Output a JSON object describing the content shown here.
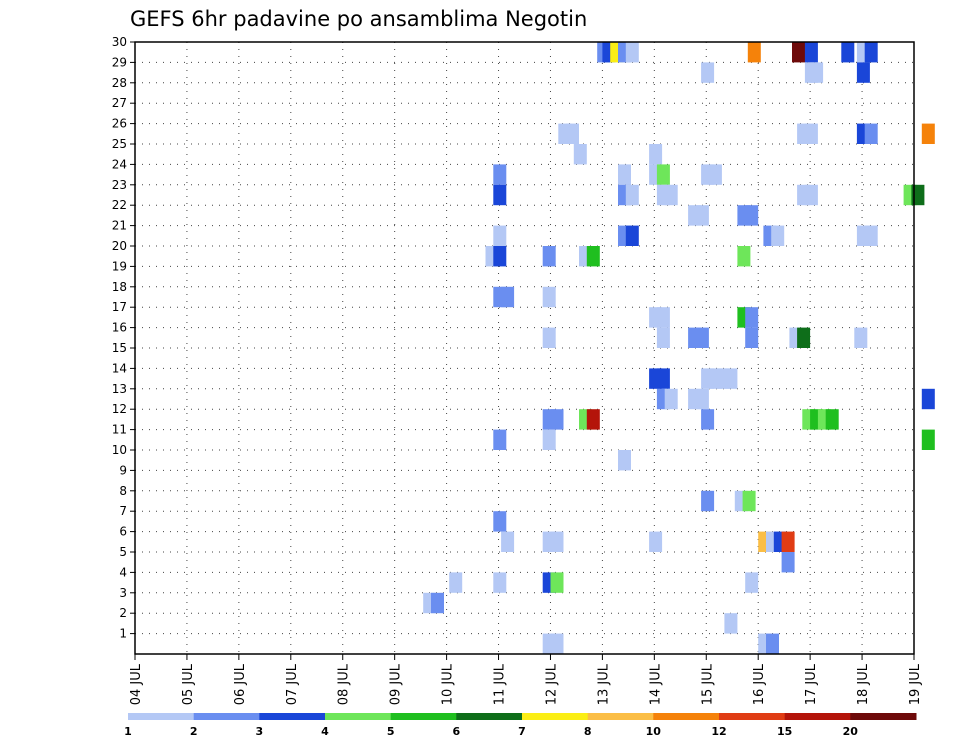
{
  "chart_data": {
    "type": "heatmap",
    "title": "GEFS 6hr padavine po ansamblima Negotin",
    "xlabel": "",
    "ylabel": "",
    "x_ticks": [
      "04 JUL",
      "05 JUL",
      "06 JUL",
      "07 JUL",
      "08 JUL",
      "09 JUL",
      "10 JUL",
      "11 JUL",
      "12 JUL",
      "13 JUL",
      "14 JUL",
      "15 JUL",
      "16 JUL",
      "17 JUL",
      "18 JUL",
      "19 JUL"
    ],
    "x_range_days": [
      4,
      19
    ],
    "y_ticks": [
      "1",
      "2",
      "3",
      "4",
      "5",
      "6",
      "7",
      "8",
      "9",
      "10",
      "11",
      "12",
      "13",
      "14",
      "15",
      "16",
      "17",
      "18",
      "19",
      "20",
      "21",
      "22",
      "23",
      "24",
      "25",
      "26",
      "27",
      "28",
      "29",
      "30"
    ],
    "y_range": [
      0,
      30
    ],
    "grid": "dotted",
    "colorbar": {
      "labels": [
        "1",
        "2",
        "3",
        "4",
        "5",
        "6",
        "7",
        "8",
        "10",
        "12",
        "15",
        "20"
      ],
      "colors": [
        "#b4c8f5",
        "#6a8ef0",
        "#1a46d8",
        "#6ee65a",
        "#1fbf1f",
        "#0e6e1a",
        "#fbee14",
        "#fbbe46",
        "#f5820a",
        "#e03c14",
        "#b4140a",
        "#6e0a0a"
      ]
    },
    "cells": [
      {
        "day": 12.9,
        "member": 30,
        "level": 2
      },
      {
        "day": 13.0,
        "member": 30,
        "level": 3
      },
      {
        "day": 13.15,
        "member": 30,
        "level": 7
      },
      {
        "day": 13.3,
        "member": 30,
        "level": 2
      },
      {
        "day": 13.45,
        "member": 30,
        "level": 1
      },
      {
        "day": 15.8,
        "member": 30,
        "level": 9
      },
      {
        "day": 16.65,
        "member": 30,
        "level": 12
      },
      {
        "day": 16.9,
        "member": 30,
        "level": 3
      },
      {
        "day": 17.6,
        "member": 30,
        "level": 3
      },
      {
        "day": 17.9,
        "member": 30,
        "level": 1
      },
      {
        "day": 18.05,
        "member": 30,
        "level": 3
      },
      {
        "day": 14.9,
        "member": 29,
        "level": 1
      },
      {
        "day": 16.9,
        "member": 29,
        "level": 1
      },
      {
        "day": 17.0,
        "member": 29,
        "level": 1
      },
      {
        "day": 17.9,
        "member": 29,
        "level": 3
      },
      {
        "day": 12.15,
        "member": 26,
        "level": 1
      },
      {
        "day": 12.3,
        "member": 26,
        "level": 1
      },
      {
        "day": 16.75,
        "member": 26,
        "level": 1
      },
      {
        "day": 16.9,
        "member": 26,
        "level": 1
      },
      {
        "day": 17.9,
        "member": 26,
        "level": 3
      },
      {
        "day": 18.05,
        "member": 26,
        "level": 2
      },
      {
        "day": 19.15,
        "member": 26,
        "level": 9
      },
      {
        "day": 12.45,
        "member": 25,
        "level": 1
      },
      {
        "day": 13.9,
        "member": 25,
        "level": 1
      },
      {
        "day": 10.9,
        "member": 24,
        "level": 2
      },
      {
        "day": 13.3,
        "member": 24,
        "level": 1
      },
      {
        "day": 13.9,
        "member": 24,
        "level": 1
      },
      {
        "day": 14.05,
        "member": 24,
        "level": 4
      },
      {
        "day": 14.9,
        "member": 24,
        "level": 1
      },
      {
        "day": 15.05,
        "member": 24,
        "level": 1
      },
      {
        "day": 10.9,
        "member": 23,
        "level": 3
      },
      {
        "day": 13.3,
        "member": 23,
        "level": 2
      },
      {
        "day": 13.45,
        "member": 23,
        "level": 1
      },
      {
        "day": 14.05,
        "member": 23,
        "level": 1
      },
      {
        "day": 14.2,
        "member": 23,
        "level": 1
      },
      {
        "day": 16.75,
        "member": 23,
        "level": 1
      },
      {
        "day": 16.9,
        "member": 23,
        "level": 1
      },
      {
        "day": 18.8,
        "member": 23,
        "level": 4
      },
      {
        "day": 18.95,
        "member": 23,
        "level": 6
      },
      {
        "day": 14.65,
        "member": 22,
        "level": 1
      },
      {
        "day": 14.8,
        "member": 22,
        "level": 1
      },
      {
        "day": 15.6,
        "member": 22,
        "level": 2
      },
      {
        "day": 15.75,
        "member": 22,
        "level": 2
      },
      {
        "day": 10.9,
        "member": 21,
        "level": 1
      },
      {
        "day": 13.3,
        "member": 21,
        "level": 2
      },
      {
        "day": 13.45,
        "member": 21,
        "level": 3
      },
      {
        "day": 16.1,
        "member": 21,
        "level": 2
      },
      {
        "day": 16.25,
        "member": 21,
        "level": 1
      },
      {
        "day": 17.9,
        "member": 21,
        "level": 1
      },
      {
        "day": 18.05,
        "member": 21,
        "level": 1
      },
      {
        "day": 10.75,
        "member": 20,
        "level": 1
      },
      {
        "day": 10.9,
        "member": 20,
        "level": 3
      },
      {
        "day": 11.85,
        "member": 20,
        "level": 2
      },
      {
        "day": 12.55,
        "member": 20,
        "level": 1
      },
      {
        "day": 12.7,
        "member": 20,
        "level": 5
      },
      {
        "day": 15.6,
        "member": 20,
        "level": 4
      },
      {
        "day": 10.9,
        "member": 18,
        "level": 2
      },
      {
        "day": 11.05,
        "member": 18,
        "level": 2
      },
      {
        "day": 11.85,
        "member": 18,
        "level": 1
      },
      {
        "day": 13.9,
        "member": 17,
        "level": 1
      },
      {
        "day": 14.05,
        "member": 17,
        "level": 1
      },
      {
        "day": 15.6,
        "member": 17,
        "level": 5
      },
      {
        "day": 15.75,
        "member": 17,
        "level": 2
      },
      {
        "day": 11.85,
        "member": 16,
        "level": 1
      },
      {
        "day": 14.05,
        "member": 16,
        "level": 1
      },
      {
        "day": 14.65,
        "member": 16,
        "level": 2
      },
      {
        "day": 14.8,
        "member": 16,
        "level": 2
      },
      {
        "day": 15.75,
        "member": 16,
        "level": 2
      },
      {
        "day": 16.6,
        "member": 16,
        "level": 1
      },
      {
        "day": 16.75,
        "member": 16,
        "level": 6
      },
      {
        "day": 17.85,
        "member": 16,
        "level": 1
      },
      {
        "day": 13.9,
        "member": 14,
        "level": 3
      },
      {
        "day": 14.05,
        "member": 14,
        "level": 3
      },
      {
        "day": 14.9,
        "member": 14,
        "level": 1
      },
      {
        "day": 15.05,
        "member": 14,
        "level": 1
      },
      {
        "day": 15.2,
        "member": 14,
        "level": 1
      },
      {
        "day": 15.35,
        "member": 14,
        "level": 1
      },
      {
        "day": 14.05,
        "member": 13,
        "level": 2
      },
      {
        "day": 14.2,
        "member": 13,
        "level": 1
      },
      {
        "day": 14.65,
        "member": 13,
        "level": 1
      },
      {
        "day": 14.8,
        "member": 13,
        "level": 1
      },
      {
        "day": 19.15,
        "member": 13,
        "level": 3
      },
      {
        "day": 11.85,
        "member": 12,
        "level": 2
      },
      {
        "day": 12.0,
        "member": 12,
        "level": 2
      },
      {
        "day": 12.55,
        "member": 12,
        "level": 4
      },
      {
        "day": 12.7,
        "member": 12,
        "level": 11
      },
      {
        "day": 14.9,
        "member": 12,
        "level": 2
      },
      {
        "day": 16.85,
        "member": 12,
        "level": 4
      },
      {
        "day": 17.0,
        "member": 12,
        "level": 5
      },
      {
        "day": 17.15,
        "member": 12,
        "level": 4
      },
      {
        "day": 17.3,
        "member": 12,
        "level": 5
      },
      {
        "day": 10.9,
        "member": 11,
        "level": 2
      },
      {
        "day": 11.85,
        "member": 11,
        "level": 1
      },
      {
        "day": 19.15,
        "member": 11,
        "level": 5
      },
      {
        "day": 13.3,
        "member": 10,
        "level": 1
      },
      {
        "day": 14.9,
        "member": 8,
        "level": 2
      },
      {
        "day": 15.55,
        "member": 8,
        "level": 1
      },
      {
        "day": 15.7,
        "member": 8,
        "level": 4
      },
      {
        "day": 10.9,
        "member": 7,
        "level": 2
      },
      {
        "day": 11.05,
        "member": 6,
        "level": 1
      },
      {
        "day": 11.85,
        "member": 6,
        "level": 1
      },
      {
        "day": 12.0,
        "member": 6,
        "level": 1
      },
      {
        "day": 13.9,
        "member": 6,
        "level": 1
      },
      {
        "day": 16.0,
        "member": 6,
        "level": 8
      },
      {
        "day": 16.15,
        "member": 6,
        "level": 1
      },
      {
        "day": 16.3,
        "member": 6,
        "level": 3
      },
      {
        "day": 16.45,
        "member": 6,
        "level": 10
      },
      {
        "day": 16.45,
        "member": 5,
        "level": 2
      },
      {
        "day": 10.05,
        "member": 4,
        "level": 1
      },
      {
        "day": 10.9,
        "member": 4,
        "level": 1
      },
      {
        "day": 11.85,
        "member": 4,
        "level": 3
      },
      {
        "day": 12.0,
        "member": 4,
        "level": 4
      },
      {
        "day": 15.75,
        "member": 4,
        "level": 1
      },
      {
        "day": 9.55,
        "member": 3,
        "level": 1
      },
      {
        "day": 9.7,
        "member": 3,
        "level": 2
      },
      {
        "day": 15.35,
        "member": 2,
        "level": 1
      },
      {
        "day": 11.85,
        "member": 1,
        "level": 1
      },
      {
        "day": 12.0,
        "member": 1,
        "level": 1
      },
      {
        "day": 16.0,
        "member": 1,
        "level": 1
      },
      {
        "day": 16.15,
        "member": 1,
        "level": 2
      }
    ]
  }
}
